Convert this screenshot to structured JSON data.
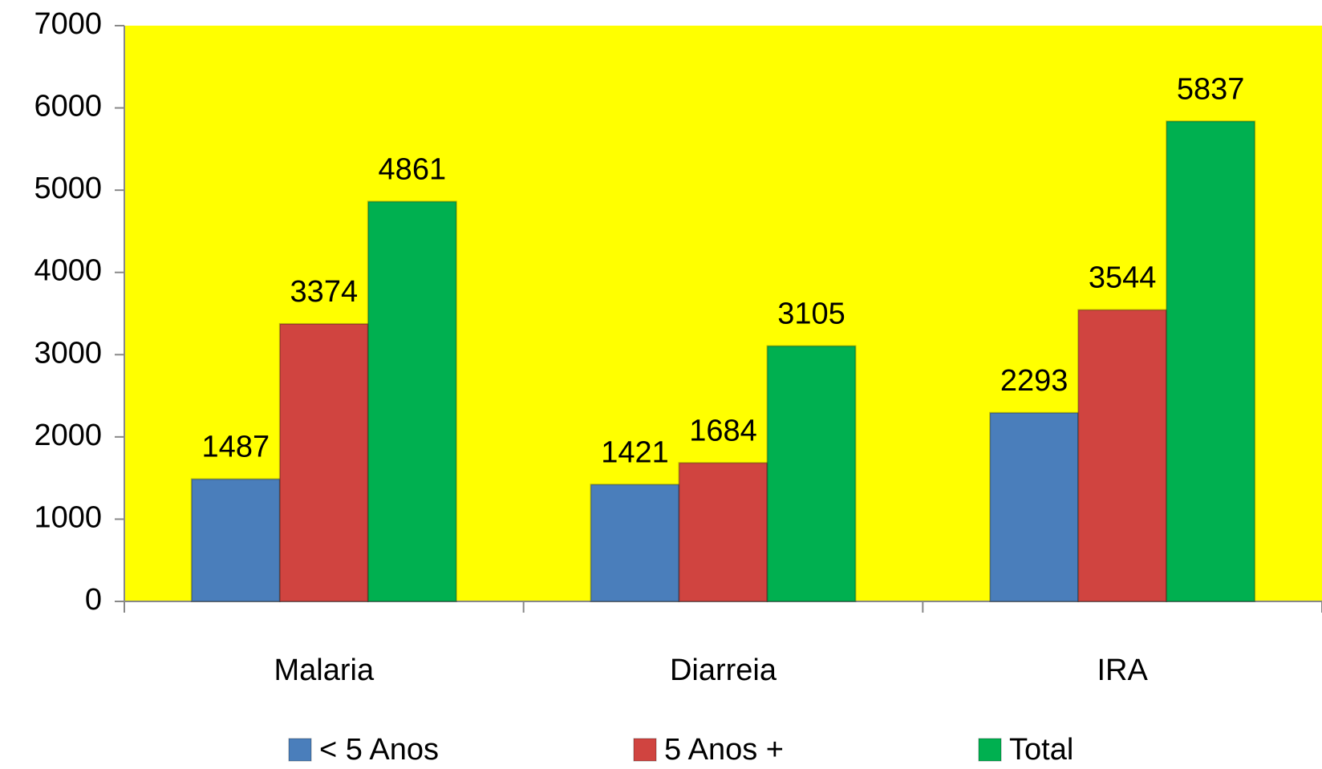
{
  "chart_data": {
    "type": "bar",
    "categories": [
      "Malaria",
      "Diarreia",
      "IRA"
    ],
    "series": [
      {
        "name": "< 5 Anos",
        "color": "#4a7ebb",
        "values": [
          1487,
          1421,
          2293
        ]
      },
      {
        "name": "5 Anos +",
        "color": "#d04440",
        "values": [
          3374,
          1684,
          3544
        ]
      },
      {
        "name": "Total",
        "color": "#00b050",
        "values": [
          4861,
          3105,
          5837
        ]
      }
    ],
    "ylim": [
      0,
      7000
    ],
    "yticks": [
      0,
      1000,
      2000,
      3000,
      4000,
      5000,
      6000,
      7000
    ],
    "background": "#ffff00"
  }
}
